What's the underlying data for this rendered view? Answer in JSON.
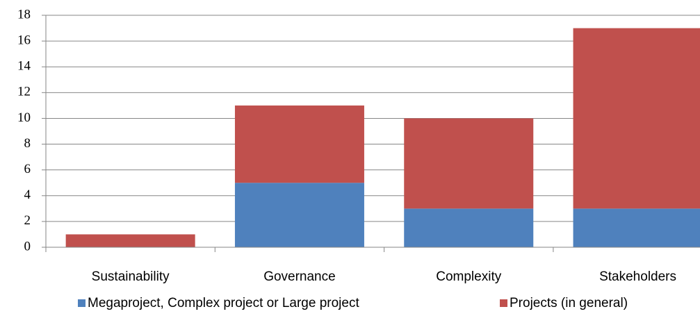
{
  "chart_data": {
    "type": "stacked_bar",
    "categories": [
      "Sustainability",
      "Governance",
      "Complexity",
      "Stakeholders"
    ],
    "series": [
      {
        "name": "Megaproject, Complex project or Large project",
        "color": "#4f81bd",
        "values": [
          0,
          5,
          3,
          3
        ]
      },
      {
        "name": "Projects (in general)",
        "color": "#c0504d",
        "values": [
          1,
          6,
          7,
          14
        ]
      }
    ],
    "ylim": [
      0,
      18
    ],
    "yticks": [
      0,
      2,
      4,
      6,
      8,
      10,
      12,
      14,
      16,
      18
    ],
    "grid": true,
    "legend": "bottom"
  }
}
